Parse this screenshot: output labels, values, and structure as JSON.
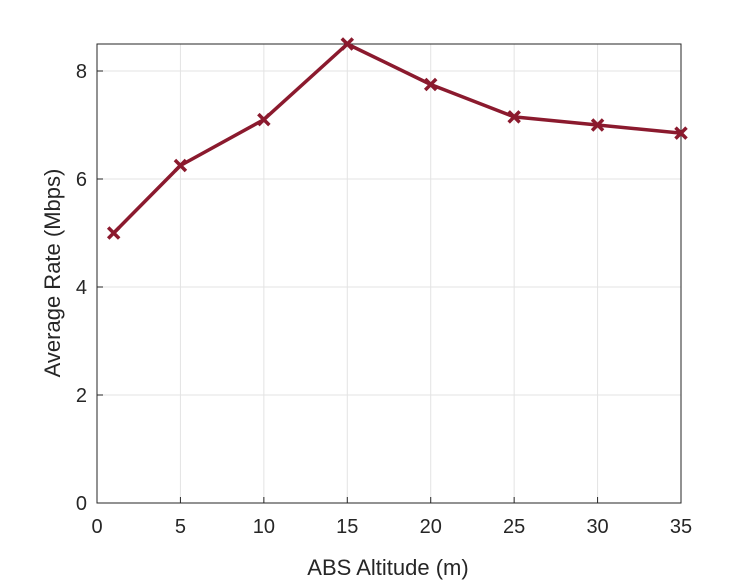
{
  "chart_data": {
    "type": "line",
    "title": "",
    "xlabel": "ABS Altitude (m)",
    "ylabel": "Average Rate (Mbps)",
    "xlim": [
      0,
      35
    ],
    "ylim": [
      0,
      8.5
    ],
    "xticks": [
      0,
      5,
      10,
      15,
      20,
      25,
      30,
      35
    ],
    "yticks": [
      0,
      2,
      4,
      6,
      8
    ],
    "grid": true,
    "box": true,
    "series": [
      {
        "color": "#8b1a2e",
        "marker": "x",
        "x": [
          1,
          5,
          10,
          15,
          20,
          25,
          30,
          35
        ],
        "y": [
          5.0,
          6.25,
          7.1,
          8.5,
          7.75,
          7.15,
          7.0,
          6.85
        ]
      }
    ]
  }
}
